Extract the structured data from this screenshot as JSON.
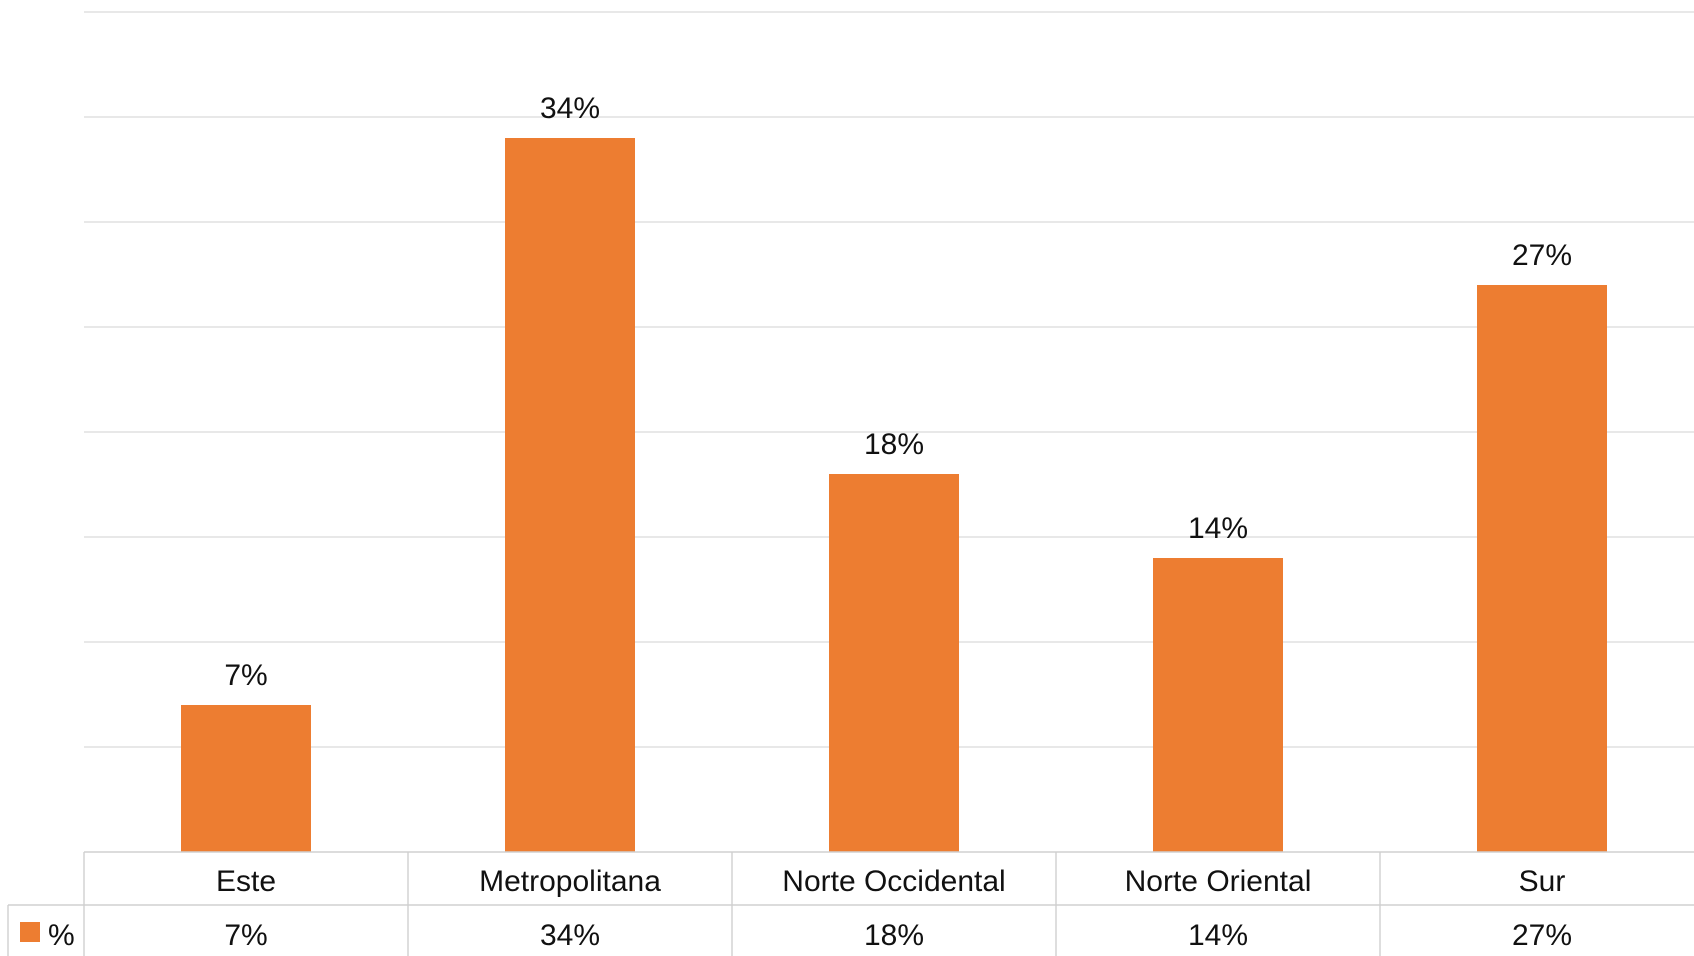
{
  "chart_data": {
    "type": "bar",
    "title": "",
    "xlabel": "",
    "ylabel": "",
    "ylim": [
      0,
      40
    ],
    "grid": true,
    "legend": "data table",
    "categories": [
      "Este",
      "Metropolitana",
      "Norte Occidental",
      "Norte Oriental",
      "Sur"
    ],
    "series": [
      {
        "name": "%",
        "values": [
          7,
          34,
          18,
          14,
          27
        ],
        "labels": [
          "7%",
          "34%",
          "18%",
          "14%",
          "27%"
        ],
        "color": "#ED7D31"
      }
    ]
  }
}
